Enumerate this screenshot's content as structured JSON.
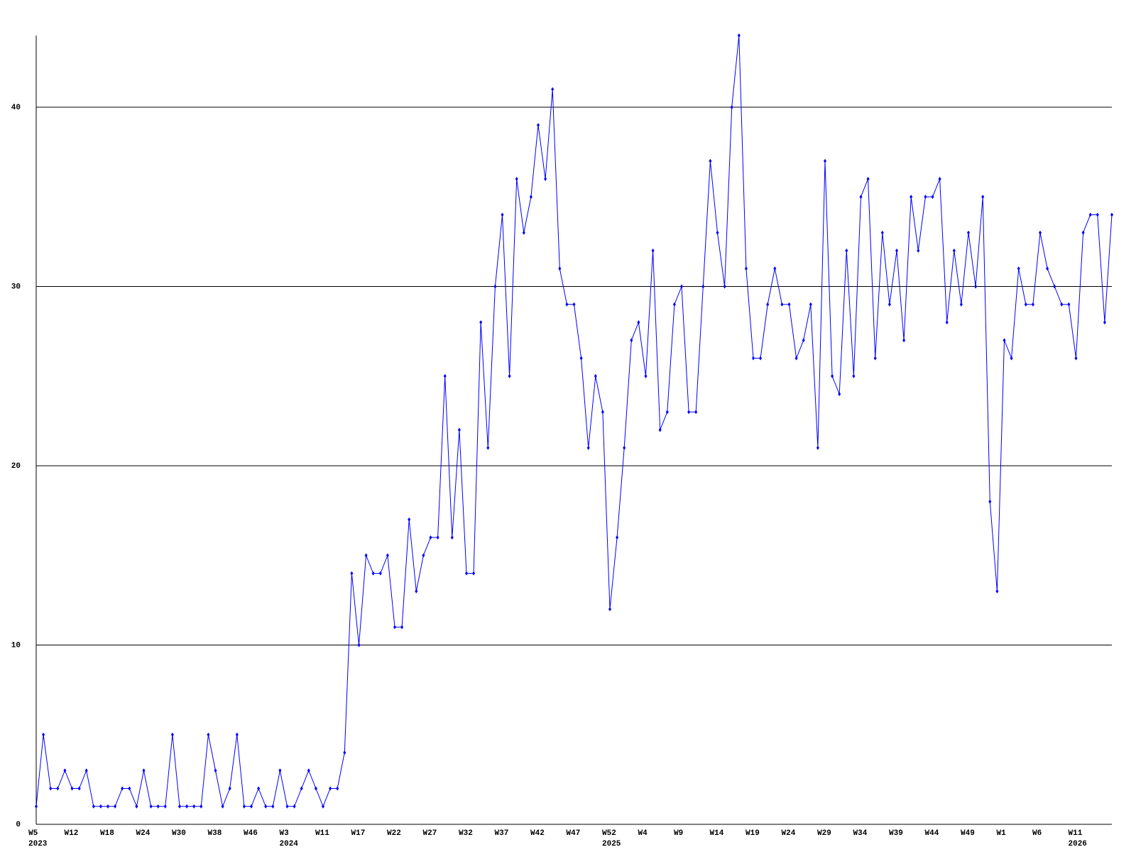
{
  "chart_data": {
    "type": "line",
    "categories": [
      "W5",
      null,
      null,
      null,
      null,
      "W12",
      null,
      null,
      null,
      null,
      "W18",
      null,
      null,
      null,
      null,
      "W24",
      null,
      null,
      null,
      null,
      "W30",
      null,
      null,
      null,
      null,
      "W38",
      null,
      null,
      null,
      null,
      "W46",
      null,
      null,
      null,
      null,
      "W3",
      null,
      null,
      null,
      null,
      "W11",
      null,
      null,
      null,
      null,
      "W17",
      null,
      null,
      null,
      null,
      "W22",
      null,
      null,
      null,
      null,
      "W27",
      null,
      null,
      null,
      null,
      "W32",
      null,
      null,
      null,
      null,
      "W37",
      null,
      null,
      null,
      null,
      "W42",
      null,
      null,
      null,
      null,
      "W47",
      null,
      null,
      null,
      null,
      "W52",
      null,
      null,
      null,
      null,
      "W4",
      null,
      null,
      null,
      null,
      "W9",
      null,
      null,
      null,
      null,
      "W14",
      null,
      null,
      null,
      null,
      "W19",
      null,
      null,
      null,
      null,
      "W24",
      null,
      null,
      null,
      null,
      "W29",
      null,
      null,
      null,
      null,
      "W34",
      null,
      null,
      null,
      null,
      "W39",
      null,
      null,
      null,
      null,
      "W44",
      null,
      null,
      null,
      null,
      "W49",
      null,
      null,
      null,
      null,
      "W1",
      null,
      null,
      null,
      null,
      "W6",
      null,
      null,
      null,
      null,
      "W11",
      null,
      null,
      null,
      null,
      null
    ],
    "years": [
      "2023",
      null,
      null,
      null,
      null,
      null,
      null,
      null,
      null,
      null,
      null,
      null,
      null,
      null,
      null,
      null,
      null,
      null,
      null,
      null,
      null,
      null,
      null,
      null,
      null,
      null,
      null,
      null,
      null,
      null,
      null,
      null,
      null,
      null,
      null,
      "2024",
      null,
      null,
      null,
      null,
      null,
      null,
      null,
      null,
      null,
      null,
      null,
      null,
      null,
      null,
      null,
      null,
      null,
      null,
      null,
      null,
      null,
      null,
      null,
      null,
      null,
      null,
      null,
      null,
      null,
      null,
      null,
      null,
      null,
      null,
      null,
      null,
      null,
      null,
      null,
      null,
      null,
      null,
      null,
      null,
      "2025",
      null,
      null,
      null,
      null,
      null,
      null,
      null,
      null,
      null,
      null,
      null,
      null,
      null,
      null,
      null,
      null,
      null,
      null,
      null,
      null,
      null,
      null,
      null,
      null,
      null,
      null,
      null,
      null,
      null,
      null,
      null,
      null,
      null,
      null,
      null,
      null,
      null,
      null,
      null,
      null,
      null,
      null,
      null,
      null,
      null,
      null,
      null,
      null,
      null,
      null,
      null,
      null,
      null,
      null,
      null,
      null,
      null,
      null,
      null,
      null,
      null,
      null,
      null,
      null,
      "2026",
      null,
      null,
      null,
      null,
      null,
      null,
      null,
      null,
      null,
      null,
      null,
      null,
      null,
      null,
      null
    ],
    "series": [
      {
        "color": "#0000ff",
        "values": [
          1,
          5,
          2,
          2,
          3,
          2,
          2,
          3,
          1,
          1,
          1,
          1,
          2,
          2,
          1,
          3,
          1,
          1,
          1,
          5,
          1,
          1,
          1,
          1,
          5,
          3,
          1,
          2,
          5,
          1,
          1,
          2,
          1,
          1,
          3,
          1,
          1,
          2,
          3,
          2,
          1,
          2,
          2,
          4,
          14,
          10,
          15,
          14,
          14,
          15,
          11,
          11,
          17,
          13,
          15,
          16,
          16,
          25,
          16,
          22,
          14,
          14,
          28,
          21,
          30,
          34,
          25,
          36,
          33,
          35,
          39,
          36,
          41,
          31,
          29,
          29,
          26,
          21,
          25,
          23,
          12,
          16,
          21,
          27,
          28,
          25,
          32,
          22,
          23,
          29,
          30,
          23,
          23,
          30,
          37,
          33,
          30,
          40,
          44,
          31,
          26,
          26,
          29,
          31,
          29,
          29,
          26,
          27,
          29,
          21,
          37,
          25,
          24,
          32,
          25,
          35,
          36,
          26,
          33,
          29,
          32,
          27,
          35,
          32,
          35,
          35,
          36,
          28,
          32,
          29,
          33,
          30,
          35,
          18,
          13,
          27,
          26,
          31,
          29,
          29,
          33,
          31,
          30,
          29,
          29,
          26,
          33,
          34,
          34,
          28,
          34
        ]
      }
    ],
    "ylim": [
      0,
      44
    ],
    "yticks": [
      0,
      10,
      20,
      30,
      40
    ],
    "grid": true
  }
}
